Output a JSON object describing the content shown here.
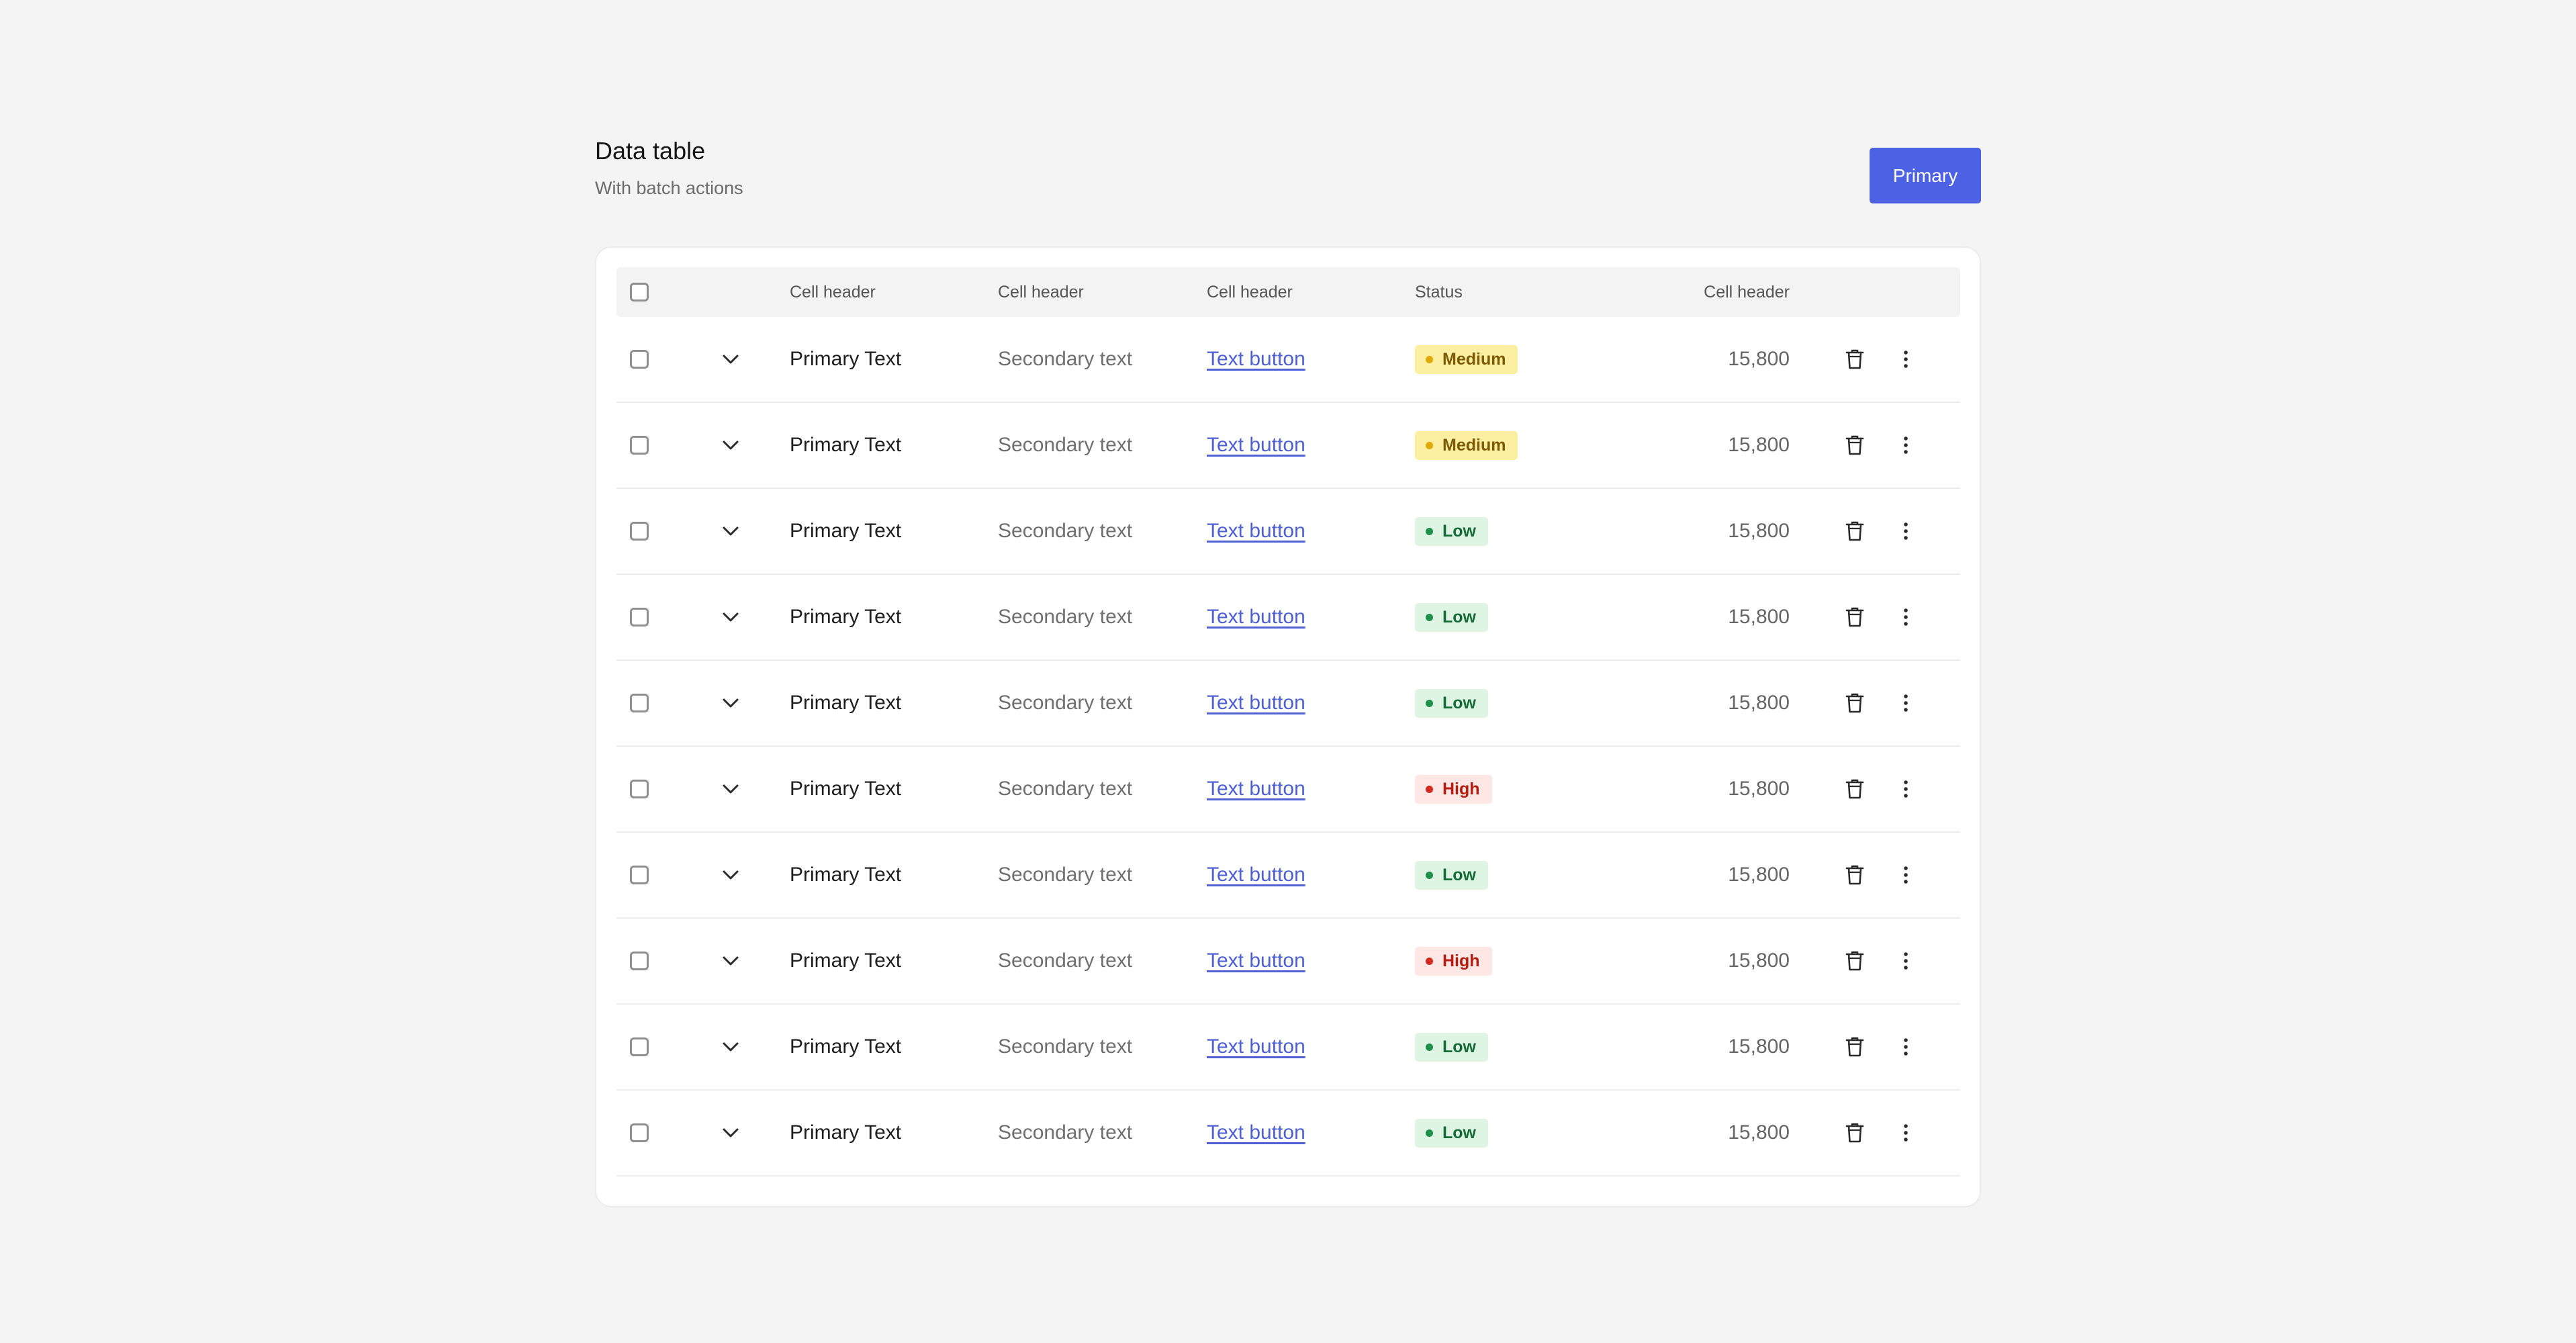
{
  "header": {
    "title": "Data table",
    "subtitle": "With batch actions",
    "primary_button": "Primary"
  },
  "table": {
    "headers": [
      "Cell header",
      "Cell header",
      "Cell header",
      "Status",
      "Cell header"
    ],
    "rows": [
      {
        "primary": "Primary Text",
        "secondary": "Secondary text",
        "link": "Text button",
        "status": "Medium",
        "status_level": "medium",
        "amount": "15,800"
      },
      {
        "primary": "Primary Text",
        "secondary": "Secondary text",
        "link": "Text button",
        "status": "Medium",
        "status_level": "medium",
        "amount": "15,800"
      },
      {
        "primary": "Primary Text",
        "secondary": "Secondary text",
        "link": "Text button",
        "status": "Low",
        "status_level": "low",
        "amount": "15,800"
      },
      {
        "primary": "Primary Text",
        "secondary": "Secondary text",
        "link": "Text button",
        "status": "Low",
        "status_level": "low",
        "amount": "15,800"
      },
      {
        "primary": "Primary Text",
        "secondary": "Secondary text",
        "link": "Text button",
        "status": "Low",
        "status_level": "low",
        "amount": "15,800"
      },
      {
        "primary": "Primary Text",
        "secondary": "Secondary text",
        "link": "Text button",
        "status": "High",
        "status_level": "high",
        "amount": "15,800"
      },
      {
        "primary": "Primary Text",
        "secondary": "Secondary text",
        "link": "Text button",
        "status": "Low",
        "status_level": "low",
        "amount": "15,800"
      },
      {
        "primary": "Primary Text",
        "secondary": "Secondary text",
        "link": "Text button",
        "status": "High",
        "status_level": "high",
        "amount": "15,800"
      },
      {
        "primary": "Primary Text",
        "secondary": "Secondary text",
        "link": "Text button",
        "status": "Low",
        "status_level": "low",
        "amount": "15,800"
      },
      {
        "primary": "Primary Text",
        "secondary": "Secondary text",
        "link": "Text button",
        "status": "Low",
        "status_level": "low",
        "amount": "15,800"
      }
    ]
  },
  "icons": {
    "expand": "chevron-down-icon",
    "delete": "trash-icon",
    "more": "more-vertical-icon"
  },
  "colors": {
    "primary_button": "#4c61e4",
    "link": "#4c5fd7",
    "status_medium": "#fcefa1",
    "status_low": "#dff5e4",
    "status_high": "#fee7e4"
  }
}
